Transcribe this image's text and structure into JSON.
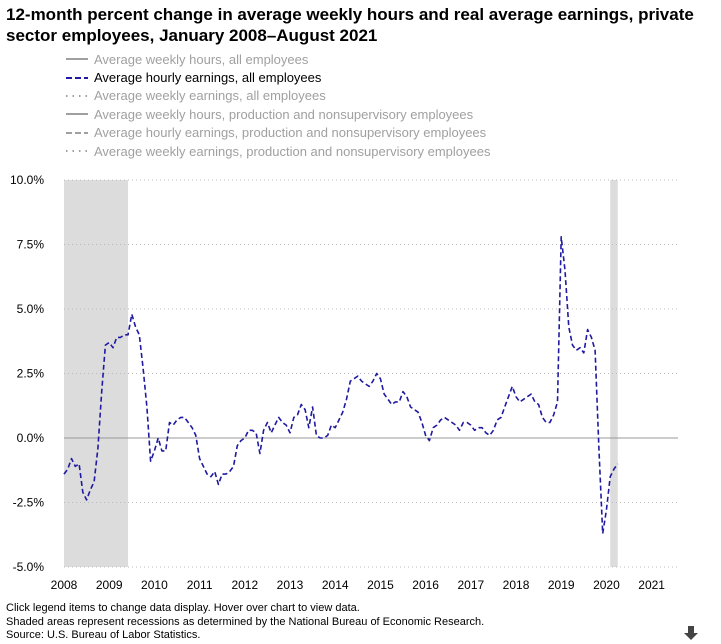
{
  "title": "12-month percent change in average weekly hours and real average earnings, private sector employees, January 2008–August 2021",
  "legend": [
    {
      "label": "Average weekly hours, all employees",
      "style": "solid",
      "active": false
    },
    {
      "label": "Average hourly earnings, all employees",
      "style": "dashed",
      "active": true
    },
    {
      "label": "Average weekly earnings, all employees",
      "style": "dotted",
      "active": false
    },
    {
      "label": "Average weekly hours, production and nonsupervisory employees",
      "style": "solid",
      "active": false
    },
    {
      "label": "Average hourly earnings, production and nonsupervisory employees",
      "style": "dashed",
      "active": false
    },
    {
      "label": "Average weekly earnings, production and nonsupervisory employees",
      "style": "dotted",
      "active": false
    }
  ],
  "footer": {
    "line1": "Click legend items to change data display. Hover over chart to view data.",
    "line2": "Shaded areas represent recessions as determined by the National Bureau of Economic Research.",
    "line3": "Source: U.S. Bureau of Labor Statistics."
  },
  "colors": {
    "series": "#1f1aa0",
    "inactive_legend": "#a0a0a0",
    "recession": "#dcdcdc",
    "grid": "#bbbbbb",
    "zero_line": "#999999"
  },
  "chart_data": {
    "type": "line",
    "ylim": [
      -5,
      10
    ],
    "xlim": [
      "2008-01",
      "2021-08"
    ],
    "y_ticks": [
      "10.0%",
      "7.5%",
      "5.0%",
      "2.5%",
      "0.0%",
      "-2.5%",
      "-5.0%"
    ],
    "y_tick_values": [
      10,
      7.5,
      5,
      2.5,
      0,
      -2.5,
      -5
    ],
    "x_ticks": [
      "2008",
      "2009",
      "2010",
      "2011",
      "2012",
      "2013",
      "2014",
      "2015",
      "2016",
      "2017",
      "2018",
      "2019",
      "2020",
      "2021"
    ],
    "grid": "horizontal dotted",
    "recessions": [
      {
        "start": "2008-01",
        "end": "2009-06"
      },
      {
        "start": "2020-02",
        "end": "2020-04"
      }
    ],
    "series": [
      {
        "name": "Average hourly earnings, all employees",
        "start": "2008-01",
        "values": [
          -1.4,
          -1.2,
          -0.8,
          -1.1,
          -1.0,
          -2.1,
          -2.4,
          -2.0,
          -1.7,
          -0.4,
          1.8,
          3.6,
          3.7,
          3.5,
          3.9,
          3.9,
          4.0,
          4.0,
          4.8,
          4.3,
          4.0,
          2.7,
          1.2,
          -0.9,
          -0.5,
          0.0,
          -0.5,
          -0.5,
          0.6,
          0.5,
          0.7,
          0.8,
          0.8,
          0.6,
          0.4,
          0.1,
          -0.8,
          -1.1,
          -1.4,
          -1.5,
          -1.3,
          -1.8,
          -1.4,
          -1.4,
          -1.3,
          -1.1,
          -0.3,
          -0.1,
          0.0,
          0.3,
          0.3,
          0.2,
          -0.6,
          0.3,
          0.6,
          0.2,
          0.5,
          0.8,
          0.6,
          0.5,
          0.2,
          0.8,
          0.9,
          1.3,
          1.1,
          0.4,
          1.2,
          0.1,
          0.0,
          0.0,
          0.1,
          0.5,
          0.4,
          0.7,
          1.0,
          1.5,
          2.2,
          2.3,
          2.4,
          2.2,
          2.1,
          2.0,
          2.2,
          2.5,
          2.3,
          1.7,
          1.5,
          1.3,
          1.4,
          1.4,
          1.8,
          1.6,
          1.2,
          1.1,
          1.0,
          0.6,
          0.1,
          -0.1,
          0.4,
          0.5,
          0.7,
          0.8,
          0.7,
          0.6,
          0.5,
          0.3,
          0.6,
          0.6,
          0.5,
          0.3,
          0.4,
          0.4,
          0.2,
          0.1,
          0.3,
          0.7,
          0.8,
          1.2,
          1.6,
          2.0,
          1.6,
          1.4,
          1.5,
          1.6,
          1.7,
          1.4,
          1.3,
          0.8,
          0.6,
          0.6,
          0.9,
          1.4,
          7.8,
          6.5,
          4.3,
          3.6,
          3.4,
          3.5,
          3.3,
          4.2,
          3.9,
          3.4,
          -0.4,
          -3.7,
          -2.8,
          -1.5,
          -1.2,
          -1.0
        ]
      }
    ]
  }
}
